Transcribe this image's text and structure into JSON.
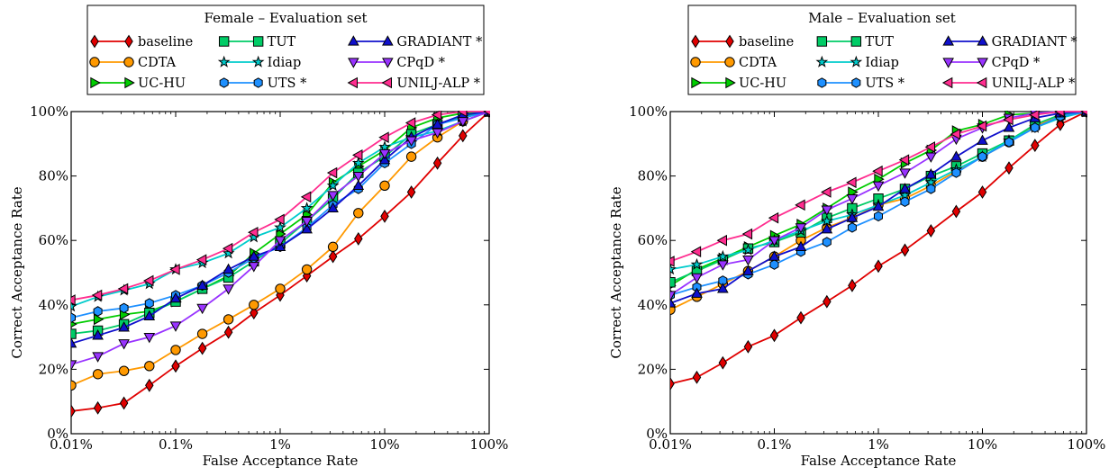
{
  "chart_data": [
    {
      "type": "line",
      "title": "Female – Evaluation set",
      "xlabel": "False Acceptance Rate",
      "ylabel": "Correct Acceptance Rate",
      "xscale": "log",
      "xlim": [
        0.01,
        100
      ],
      "ylim": [
        0,
        100
      ],
      "xticks": [
        0.01,
        0.1,
        1,
        10,
        100
      ],
      "xticklabels": [
        "0.01%",
        "0.1%",
        "1%",
        "10%",
        "100%"
      ],
      "yticks": [
        0,
        20,
        40,
        60,
        80,
        100
      ],
      "yticklabels": [
        "0%",
        "20%",
        "40%",
        "60%",
        "80%",
        "100%"
      ],
      "legend_position": "top",
      "x": [
        0.01,
        0.018,
        0.032,
        0.056,
        0.1,
        0.18,
        0.32,
        0.56,
        1,
        1.8,
        3.2,
        5.6,
        10,
        18,
        32,
        56,
        100
      ],
      "series": [
        {
          "name": "baseline",
          "color": "#e00000",
          "marker": "diamond",
          "values": [
            7,
            8,
            9.5,
            15,
            21,
            26.5,
            31.5,
            37.5,
            43,
            49,
            55,
            60.5,
            67.5,
            75,
            84,
            92.5,
            100
          ]
        },
        {
          "name": "CDTA",
          "color": "#ff9900",
          "marker": "circle",
          "values": [
            15,
            18.5,
            19.5,
            21,
            26,
            31,
            35.5,
            40,
            45,
            51,
            58,
            68.5,
            77,
            86,
            92,
            97,
            100
          ]
        },
        {
          "name": "UC-HU",
          "color": "#00cc00",
          "marker": "triangle-right",
          "values": [
            34,
            35.5,
            37,
            38,
            41,
            45,
            49,
            56,
            62,
            68,
            78,
            83,
            88,
            95,
            98,
            99.5,
            100
          ]
        },
        {
          "name": "TUT",
          "color": "#00cc66",
          "marker": "square",
          "values": [
            31,
            32,
            34,
            37.5,
            41,
            45,
            48.5,
            53.5,
            59,
            66,
            73,
            81,
            86,
            93,
            96,
            98.5,
            100
          ]
        },
        {
          "name": "Idiap",
          "color": "#00cccc",
          "marker": "star",
          "values": [
            39.5,
            42.5,
            44.5,
            46.5,
            51,
            53,
            56,
            61,
            64,
            70,
            77,
            84,
            89,
            92,
            94,
            97,
            100
          ]
        },
        {
          "name": "UTS *",
          "color": "#1e90ff",
          "marker": "hexagon",
          "values": [
            36,
            38,
            39,
            40.5,
            43,
            46,
            50,
            54.5,
            58,
            64,
            71,
            76,
            84,
            90,
            96,
            98,
            100
          ]
        },
        {
          "name": "GRADIANT *",
          "color": "#1010cc",
          "marker": "triangle-up",
          "values": [
            28,
            30.5,
            33,
            36.5,
            42,
            46,
            51,
            55,
            58,
            63.5,
            70,
            77,
            85,
            92,
            96,
            99,
            100
          ]
        },
        {
          "name": "CPqD *",
          "color": "#9933ff",
          "marker": "triangle-down",
          "values": [
            21.5,
            24,
            28,
            30,
            33.5,
            39,
            45,
            52,
            60,
            66,
            74,
            80,
            87,
            91,
            93.5,
            97,
            100
          ]
        },
        {
          "name": "UNILJ-ALP *",
          "color": "#ff2d8f",
          "marker": "triangle-left",
          "values": [
            41.5,
            43,
            45,
            47.5,
            51,
            54,
            57.5,
            62.5,
            66.5,
            73.5,
            81,
            86.5,
            92,
            96.5,
            99,
            100,
            100
          ]
        }
      ]
    },
    {
      "type": "line",
      "title": "Male – Evaluation set",
      "xlabel": "False Acceptance Rate",
      "ylabel": "Correct Acceptance Rate",
      "xscale": "log",
      "xlim": [
        0.01,
        100
      ],
      "ylim": [
        0,
        100
      ],
      "xticks": [
        0.01,
        0.1,
        1,
        10,
        100
      ],
      "xticklabels": [
        "0.01%",
        "0.1%",
        "1%",
        "10%",
        "100%"
      ],
      "yticks": [
        0,
        20,
        40,
        60,
        80,
        100
      ],
      "yticklabels": [
        "0%",
        "20%",
        "40%",
        "60%",
        "80%",
        "100%"
      ],
      "legend_position": "top",
      "x": [
        0.01,
        0.018,
        0.032,
        0.056,
        0.1,
        0.18,
        0.32,
        0.56,
        1,
        1.8,
        3.2,
        5.6,
        10,
        18,
        32,
        56,
        100
      ],
      "series": [
        {
          "name": "baseline",
          "color": "#e00000",
          "marker": "diamond",
          "values": [
            15.5,
            17.5,
            22,
            27,
            30.5,
            36,
            41,
            46,
            52,
            57,
            63,
            69,
            75,
            82.5,
            89.5,
            96,
            100
          ]
        },
        {
          "name": "CDTA",
          "color": "#ff9900",
          "marker": "circle",
          "values": [
            38.5,
            42.5,
            46.5,
            50.5,
            55,
            60,
            64,
            67,
            71,
            73,
            77,
            81.5,
            86,
            90.5,
            95.5,
            98.5,
            100
          ]
        },
        {
          "name": "UC-HU",
          "color": "#00cc00",
          "marker": "triangle-right",
          "values": [
            46,
            51,
            54.5,
            58,
            61.5,
            65,
            70,
            75,
            79,
            84,
            88,
            94,
            96,
            99,
            99.5,
            100,
            100
          ]
        },
        {
          "name": "TUT",
          "color": "#00cc66",
          "marker": "square",
          "values": [
            47,
            50.5,
            54,
            57.5,
            59.5,
            62.5,
            67,
            70,
            73,
            76,
            80,
            83,
            87,
            91,
            96,
            99,
            100
          ]
        },
        {
          "name": "Idiap",
          "color": "#00cccc",
          "marker": "star",
          "values": [
            51,
            52.5,
            55,
            57,
            60,
            63,
            66,
            68,
            71,
            74,
            78,
            82,
            86,
            91,
            95,
            98,
            100
          ]
        },
        {
          "name": "UTS *",
          "color": "#1e90ff",
          "marker": "hexagon",
          "values": [
            43,
            45.5,
            47.5,
            49.5,
            52.5,
            56.5,
            59.5,
            64,
            67.5,
            72,
            76,
            81,
            86,
            90.5,
            95,
            98.5,
            100
          ]
        },
        {
          "name": "GRADIANT *",
          "color": "#1010cc",
          "marker": "triangle-up",
          "values": [
            40.5,
            43.5,
            45,
            50.5,
            55,
            58,
            63.5,
            67,
            70.5,
            76,
            80.5,
            86,
            91,
            95,
            98,
            99.5,
            100
          ]
        },
        {
          "name": "CPqD *",
          "color": "#9933ff",
          "marker": "triangle-down",
          "values": [
            43,
            48.5,
            52.5,
            54,
            60,
            64,
            69.5,
            73,
            77,
            81,
            86,
            91.5,
            95,
            98,
            99.5,
            100,
            100
          ]
        },
        {
          "name": "UNILJ-ALP *",
          "color": "#ff2d8f",
          "marker": "triangle-left",
          "values": [
            53.5,
            56.5,
            60,
            62,
            67,
            71,
            75,
            78,
            81.5,
            85,
            89,
            93,
            95.5,
            97.5,
            99,
            100,
            100
          ]
        }
      ]
    }
  ]
}
